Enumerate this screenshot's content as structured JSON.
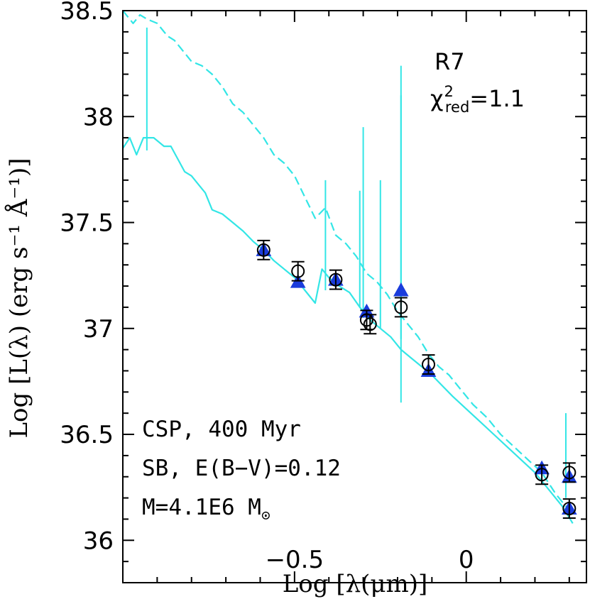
{
  "chart_data": {
    "type": "scatter",
    "xlabel": "Log [λ(μm)]",
    "ylabel": "Log [L(λ) (erg s⁻¹ Å⁻¹)]",
    "xlim": [
      -1.0,
      0.35
    ],
    "ylim": [
      35.8,
      38.5
    ],
    "x_ticks": [
      -0.5,
      0
    ],
    "x_tick_labels": [
      "−0.5",
      "0"
    ],
    "y_ticks": [
      36,
      36.5,
      37,
      37.5,
      38,
      38.5
    ],
    "y_tick_labels": [
      "36",
      "36.5",
      "37",
      "37.5",
      "38",
      "38.5"
    ],
    "label_top": "R7",
    "chi_symbol": "χ",
    "chi_sup": "2",
    "chi_sub": "red",
    "chi_value": "=1.1",
    "annotation_lines": [
      "CSP, 400 Myr",
      "SB, E(B−V)=0.12",
      "M=4.1E6 M"
    ],
    "sun_symbol": "⊙",
    "colors": {
      "model": "#33e6e6",
      "triangle": "#1a3cdc",
      "frame": "#000000"
    },
    "series": [
      {
        "name": "observed",
        "marker": "open-circle",
        "points": [
          {
            "x": -0.59,
            "y": 37.37,
            "err": 0.045
          },
          {
            "x": -0.49,
            "y": 37.27,
            "err": 0.045
          },
          {
            "x": -0.38,
            "y": 37.23,
            "err": 0.045
          },
          {
            "x": -0.29,
            "y": 37.04,
            "err": 0.045
          },
          {
            "x": -0.28,
            "y": 37.02,
            "err": 0.045
          },
          {
            "x": -0.19,
            "y": 37.1,
            "err": 0.045
          },
          {
            "x": -0.11,
            "y": 36.83,
            "err": 0.045
          },
          {
            "x": 0.22,
            "y": 36.31,
            "err": 0.045
          },
          {
            "x": 0.3,
            "y": 36.32,
            "err": 0.045
          },
          {
            "x": 0.3,
            "y": 36.15,
            "err": 0.045
          }
        ]
      },
      {
        "name": "model-photometry",
        "marker": "filled-triangle",
        "points": [
          {
            "x": -0.59,
            "y": 37.37
          },
          {
            "x": -0.49,
            "y": 37.22
          },
          {
            "x": -0.38,
            "y": 37.23
          },
          {
            "x": -0.29,
            "y": 37.08
          },
          {
            "x": -0.19,
            "y": 37.18
          },
          {
            "x": -0.11,
            "y": 36.8
          },
          {
            "x": 0.22,
            "y": 36.34
          },
          {
            "x": 0.3,
            "y": 36.3
          },
          {
            "x": 0.3,
            "y": 36.15
          }
        ]
      },
      {
        "name": "model-spectrum-unreddened",
        "style": "dashed",
        "x": [
          -1.0,
          -0.97,
          -0.95,
          -0.93,
          -0.9,
          -0.87,
          -0.85,
          -0.82,
          -0.8,
          -0.77,
          -0.74,
          -0.71,
          -0.68,
          -0.65,
          -0.62,
          -0.59,
          -0.56,
          -0.53,
          -0.5,
          -0.47,
          -0.44,
          -0.41,
          -0.38,
          -0.35,
          -0.32,
          -0.29,
          -0.26,
          -0.23,
          -0.2,
          -0.17,
          -0.14,
          -0.11,
          -0.08,
          -0.05,
          -0.02,
          0.02,
          0.06,
          0.1,
          0.14,
          0.18,
          0.22,
          0.26,
          0.31
        ],
        "y": [
          38.5,
          38.44,
          38.48,
          38.46,
          38.44,
          38.38,
          38.36,
          38.3,
          38.26,
          38.24,
          38.2,
          38.14,
          38.06,
          38.02,
          37.96,
          37.9,
          37.82,
          37.78,
          37.72,
          37.62,
          37.52,
          37.57,
          37.44,
          37.4,
          37.34,
          37.26,
          37.22,
          37.16,
          37.08,
          37.02,
          36.96,
          36.88,
          36.82,
          36.78,
          36.72,
          36.64,
          36.58,
          36.5,
          36.44,
          36.38,
          36.32,
          36.22,
          36.12
        ],
        "spikes": [
          {
            "x": -0.31,
            "y_top": 37.65,
            "y_bottom": 37.1
          },
          {
            "x": -0.19,
            "y_top": 38.24,
            "y_bottom": 36.95
          }
        ]
      },
      {
        "name": "model-spectrum-reddened",
        "style": "solid",
        "x": [
          -1.0,
          -0.98,
          -0.96,
          -0.94,
          -0.91,
          -0.88,
          -0.86,
          -0.84,
          -0.82,
          -0.8,
          -0.78,
          -0.76,
          -0.74,
          -0.71,
          -0.68,
          -0.65,
          -0.62,
          -0.59,
          -0.56,
          -0.53,
          -0.5,
          -0.47,
          -0.44,
          -0.42,
          -0.4,
          -0.37,
          -0.34,
          -0.31,
          -0.28,
          -0.25,
          -0.22,
          -0.19,
          -0.16,
          -0.13,
          -0.1,
          -0.07,
          -0.04,
          0.0,
          0.04,
          0.08,
          0.12,
          0.16,
          0.2,
          0.24,
          0.28,
          0.31
        ],
        "y": [
          37.85,
          37.9,
          37.82,
          37.9,
          37.9,
          37.86,
          37.86,
          37.8,
          37.74,
          37.72,
          37.68,
          37.64,
          37.56,
          37.54,
          37.5,
          37.46,
          37.41,
          37.37,
          37.32,
          37.28,
          37.24,
          37.18,
          37.12,
          37.28,
          37.24,
          37.2,
          37.17,
          37.1,
          37.04,
          37.0,
          36.96,
          36.9,
          36.86,
          36.82,
          36.78,
          36.73,
          36.68,
          36.62,
          36.56,
          36.5,
          36.44,
          36.38,
          36.32,
          36.24,
          36.16,
          36.08
        ],
        "spikes": [
          {
            "x": -0.93,
            "y_top": 38.42,
            "y_bottom": 37.84
          },
          {
            "x": -0.41,
            "y_top": 37.7,
            "y_bottom": 37.18
          },
          {
            "x": -0.3,
            "y_top": 37.95,
            "y_bottom": 37.05
          },
          {
            "x": -0.25,
            "y_top": 37.7,
            "y_bottom": 37.0
          },
          {
            "x": -0.19,
            "y_top": 38.1,
            "y_bottom": 36.65
          },
          {
            "x": 0.29,
            "y_top": 36.6,
            "y_bottom": 36.2
          }
        ]
      }
    ]
  }
}
